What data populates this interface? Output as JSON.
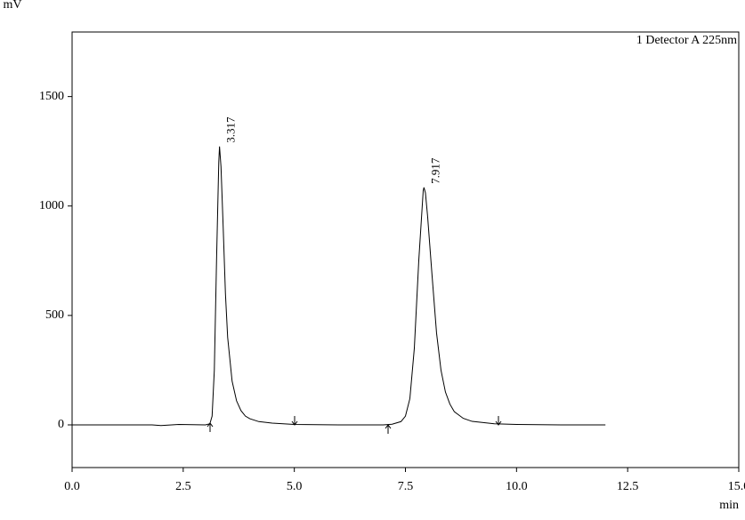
{
  "chart_data": {
    "type": "line",
    "x_label": "min",
    "y_label": "mV",
    "x": [
      0,
      1.8,
      2.0,
      2.4,
      3.0,
      3.1,
      3.15,
      3.2,
      3.25,
      3.3,
      3.317,
      3.35,
      3.4,
      3.45,
      3.5,
      3.6,
      3.7,
      3.8,
      3.9,
      4.0,
      4.2,
      4.5,
      5.0,
      6.0,
      7.0,
      7.2,
      7.4,
      7.5,
      7.6,
      7.7,
      7.8,
      7.9,
      7.917,
      7.95,
      8.0,
      8.1,
      8.2,
      8.3,
      8.4,
      8.5,
      8.6,
      8.8,
      9.0,
      9.5,
      10.0,
      11.0,
      12.0
    ],
    "series": [
      {
        "name": "1 Detector A 225nm",
        "color": "#000000",
        "values": [
          0,
          0,
          -3,
          2,
          0,
          5,
          40,
          250,
          750,
          1200,
          1272,
          1180,
          900,
          600,
          400,
          200,
          110,
          65,
          40,
          28,
          15,
          8,
          2,
          0,
          0,
          3,
          15,
          40,
          120,
          350,
          750,
          1070,
          1085,
          1060,
          950,
          680,
          420,
          250,
          150,
          95,
          60,
          30,
          16,
          5,
          2,
          0,
          0
        ]
      }
    ],
    "annotations": [
      {
        "label": "3.317",
        "x": 3.317
      },
      {
        "label": "7.917",
        "x": 7.917
      }
    ],
    "xlim": [
      0,
      15
    ],
    "ylim": [
      -195,
      1795
    ],
    "xticks": [
      {
        "value": 0,
        "label": "0.0"
      },
      2.5,
      {
        "value": 5,
        "label": "5.0"
      },
      7.5,
      {
        "value": 10,
        "label": "10.0"
      },
      12.5,
      {
        "value": 15,
        "label": "15.0"
      }
    ],
    "yticks": [
      0,
      500,
      1000,
      1500
    ],
    "grid": false
  }
}
